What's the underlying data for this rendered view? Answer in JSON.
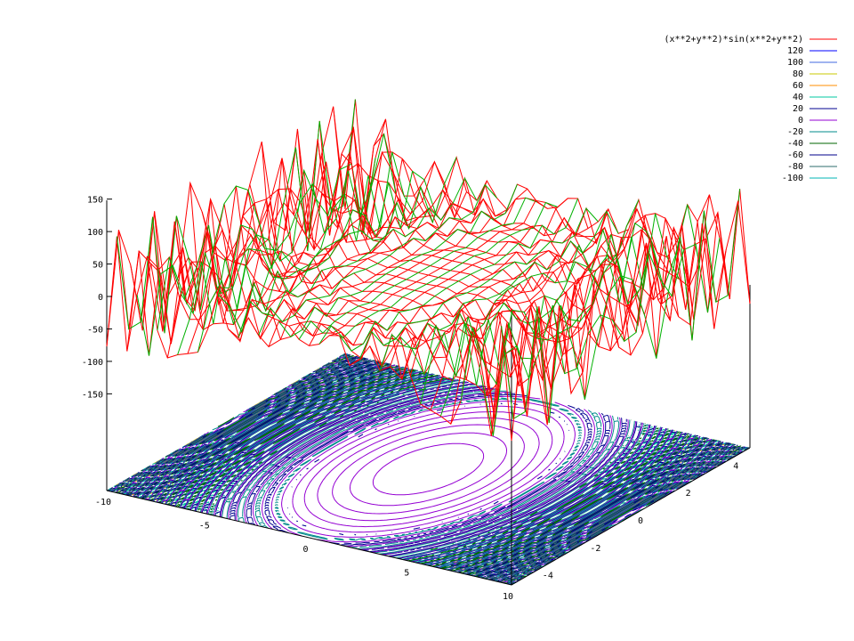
{
  "chart_data": {
    "type": "surface",
    "function": "(x**2+y**2)*sin(x**2+y**2)",
    "x_ticks": [
      "-10",
      "-5",
      "0",
      "5",
      "10"
    ],
    "y_ticks": [
      "-4",
      "-2",
      "0",
      "2",
      "4"
    ],
    "z_ticks": [
      "150",
      "100",
      "50",
      "0",
      "-50",
      "-100",
      "-150"
    ],
    "xrange": [
      -10,
      10
    ],
    "yrange": [
      -5,
      5
    ],
    "zrange": [
      -150,
      150
    ],
    "contour_levels": [
      120,
      100,
      80,
      60,
      40,
      20,
      0,
      -20,
      -40,
      -60,
      -80,
      -100
    ],
    "legend": {
      "placement": "top-right",
      "entries": [
        {
          "label": "(x**2+y**2)*sin(x**2+y**2)",
          "color": "#ff0000"
        },
        {
          "label": "120",
          "color": "#0000ff"
        },
        {
          "label": "100",
          "color": "#4169e1"
        },
        {
          "label": "80",
          "color": "#c8c800"
        },
        {
          "label": "60",
          "color": "#ff8c00"
        },
        {
          "label": "40",
          "color": "#00c8a0"
        },
        {
          "label": "20",
          "color": "#000090"
        },
        {
          "label": "0",
          "color": "#9400d3"
        },
        {
          "label": "-20",
          "color": "#008b8b"
        },
        {
          "label": "-40",
          "color": "#006400"
        },
        {
          "label": "-60",
          "color": "#00008b"
        },
        {
          "label": "-80",
          "color": "#2e6e6e"
        },
        {
          "label": "-100",
          "color": "#00b4b4"
        }
      ]
    },
    "colors": {
      "surface_top": "#ff0000",
      "surface_bottom": "#00b000",
      "axes": "#000000"
    }
  }
}
